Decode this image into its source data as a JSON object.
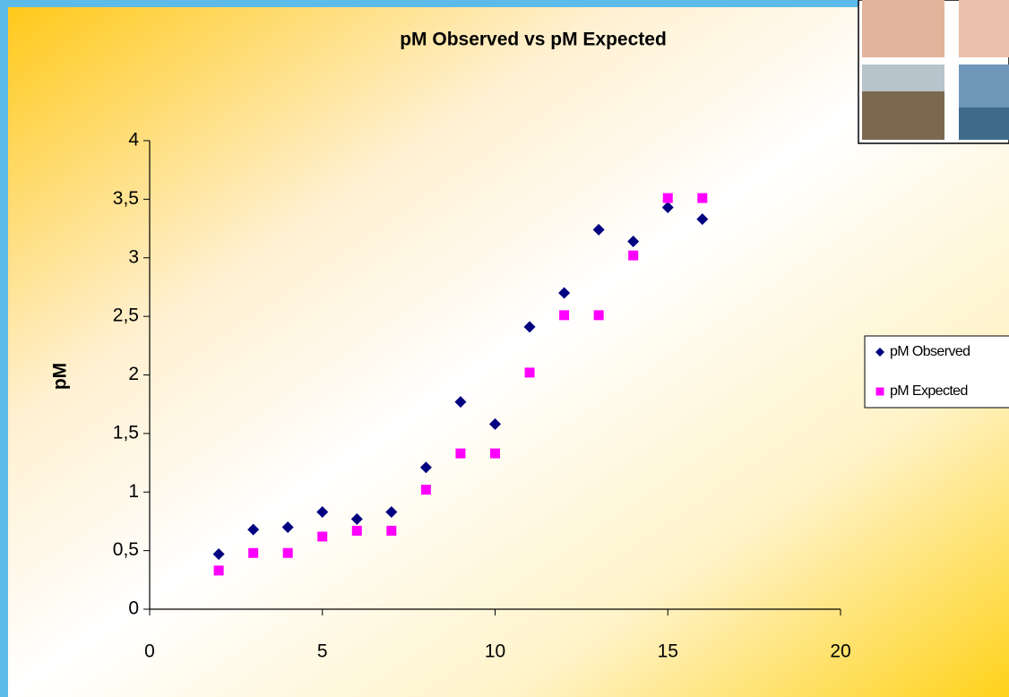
{
  "chart_data": {
    "type": "scatter",
    "title": "pM Observed vs pM Expected",
    "y_label": "pM",
    "series": [
      {
        "name": "pM Observed",
        "color": "#000080",
        "marker": "diamond",
        "x": [
          2,
          3,
          4,
          5,
          6,
          7,
          8,
          9,
          10,
          11,
          12,
          13,
          14,
          15,
          16
        ],
        "values": [
          0.47,
          0.68,
          0.7,
          0.83,
          0.77,
          0.83,
          1.21,
          1.77,
          1.58,
          2.41,
          2.7,
          3.24,
          3.14,
          3.43,
          3.33
        ]
      },
      {
        "name": "pM Expected",
        "color": "#ff00ff",
        "marker": "square",
        "x": [
          2,
          3,
          4,
          5,
          6,
          7,
          8,
          9,
          10,
          11,
          12,
          13,
          14,
          15,
          16
        ],
        "values": [
          0.33,
          0.48,
          0.48,
          0.62,
          0.67,
          0.67,
          1.02,
          1.33,
          1.33,
          2.02,
          2.51,
          2.51,
          3.02,
          3.51,
          3.51
        ]
      }
    ],
    "xlim": [
      0,
      20
    ],
    "xticks": [
      0,
      5,
      10,
      15,
      20
    ],
    "ylim": [
      0,
      4
    ],
    "yticks": [
      0,
      {
        "value": 0.5,
        "label": "0,5"
      },
      1,
      {
        "value": 1.5,
        "label": "1,5"
      },
      2,
      {
        "value": 2.5,
        "label": "2,5"
      },
      3,
      {
        "value": 3.5,
        "label": "3,5"
      },
      4
    ],
    "grid": false,
    "legend": "right"
  }
}
